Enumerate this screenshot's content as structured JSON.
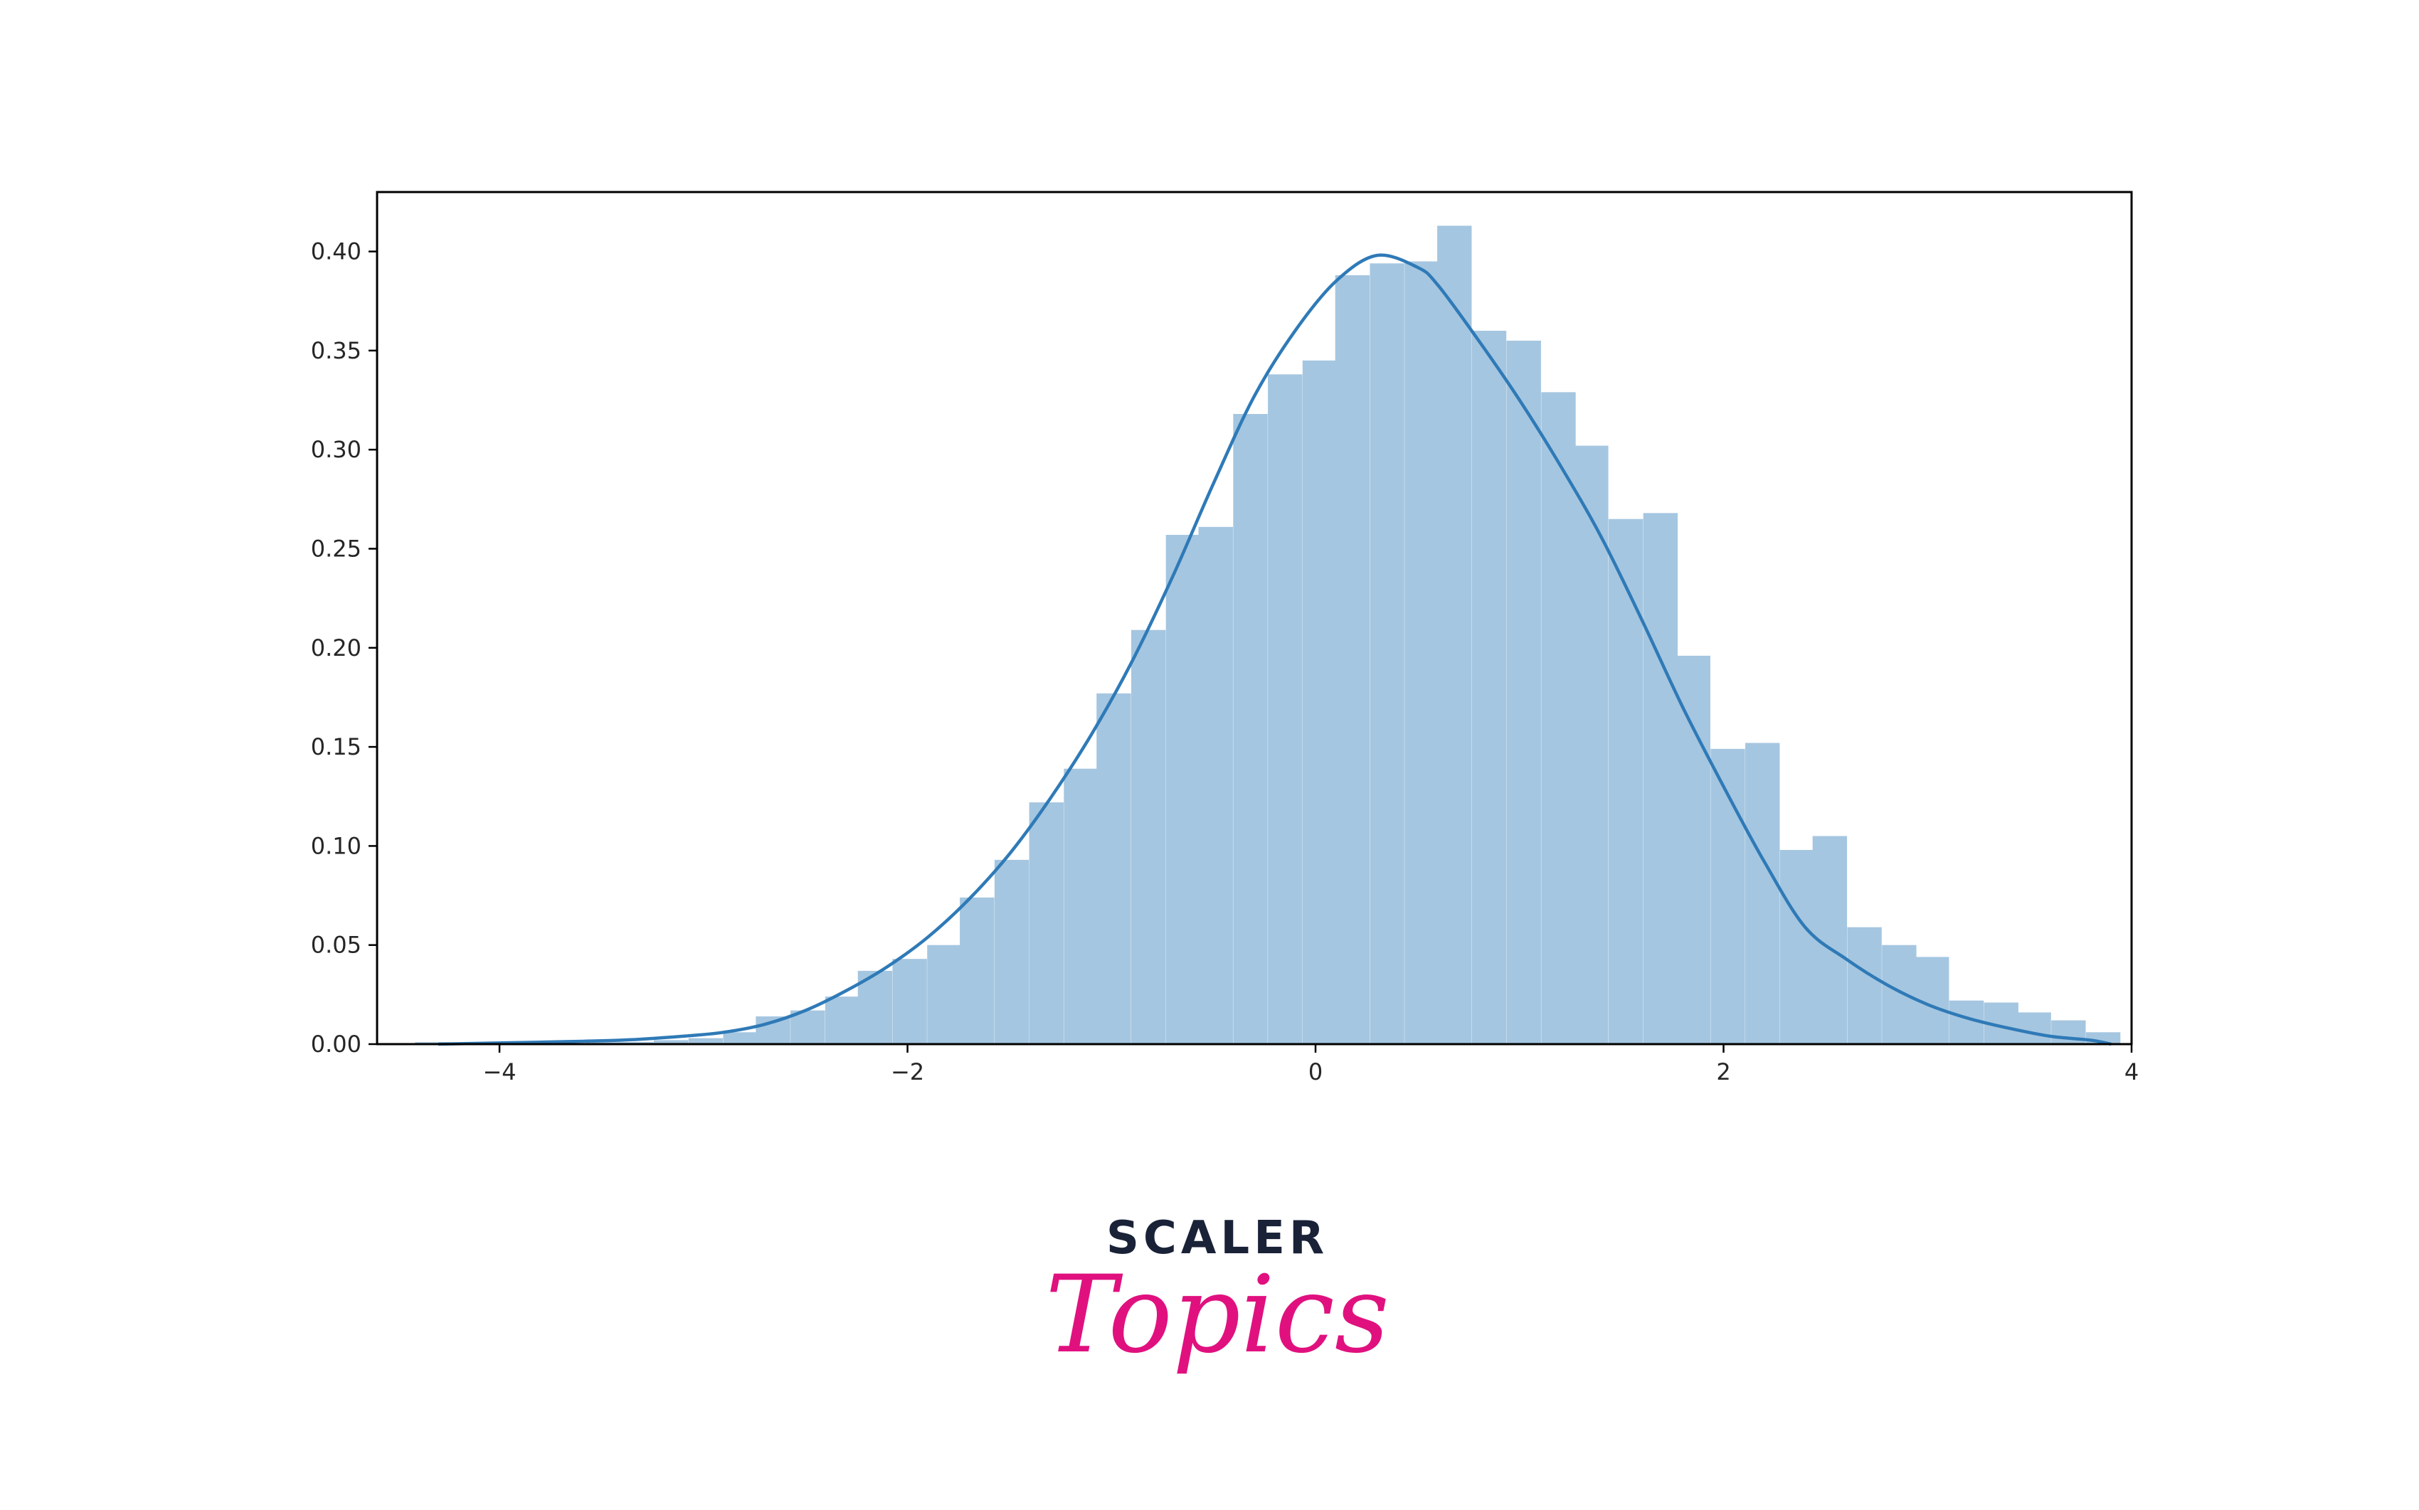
{
  "chart_data": {
    "type": "bar",
    "kde": true,
    "bin_width": 0.167,
    "xlim": [
      -4.6,
      4.0
    ],
    "ylim": [
      0.0,
      0.43
    ],
    "xticks": [
      -4,
      -2,
      0,
      2,
      4
    ],
    "xtick_labels": [
      "−4",
      "−2",
      "0",
      "2",
      "4"
    ],
    "yticks": [
      0.0,
      0.05,
      0.1,
      0.15,
      0.2,
      0.25,
      0.3,
      0.35,
      0.4
    ],
    "ytick_labels": [
      "0.00",
      "0.05",
      "0.10",
      "0.15",
      "0.20",
      "0.25",
      "0.30",
      "0.35",
      "0.40"
    ],
    "bins": [
      {
        "x": -4.33,
        "value": 0.001
      },
      {
        "x": -4.16,
        "value": 0.0
      },
      {
        "x": -3.99,
        "value": 0.0
      },
      {
        "x": -3.83,
        "value": 0.001
      },
      {
        "x": -3.66,
        "value": 0.0
      },
      {
        "x": -3.49,
        "value": 0.001
      },
      {
        "x": -3.33,
        "value": 0.001
      },
      {
        "x": -3.16,
        "value": 0.002
      },
      {
        "x": -2.99,
        "value": 0.003
      },
      {
        "x": -2.82,
        "value": 0.006
      },
      {
        "x": -2.66,
        "value": 0.014
      },
      {
        "x": -2.49,
        "value": 0.017
      },
      {
        "x": -2.32,
        "value": 0.024
      },
      {
        "x": -2.16,
        "value": 0.037
      },
      {
        "x": -1.99,
        "value": 0.043
      },
      {
        "x": -1.82,
        "value": 0.05
      },
      {
        "x": -1.66,
        "value": 0.074
      },
      {
        "x": -1.49,
        "value": 0.093
      },
      {
        "x": -1.32,
        "value": 0.122
      },
      {
        "x": -1.15,
        "value": 0.139
      },
      {
        "x": -0.99,
        "value": 0.177
      },
      {
        "x": -0.82,
        "value": 0.209
      },
      {
        "x": -0.65,
        "value": 0.257
      },
      {
        "x": -0.49,
        "value": 0.261
      },
      {
        "x": -0.32,
        "value": 0.318
      },
      {
        "x": -0.15,
        "value": 0.338
      },
      {
        "x": 0.02,
        "value": 0.345
      },
      {
        "x": 0.18,
        "value": 0.388
      },
      {
        "x": 0.35,
        "value": 0.394
      },
      {
        "x": 0.52,
        "value": 0.395
      },
      {
        "x": 0.68,
        "value": 0.413
      },
      {
        "x": 0.85,
        "value": 0.36
      },
      {
        "x": 1.02,
        "value": 0.355
      },
      {
        "x": 1.19,
        "value": 0.329
      },
      {
        "x": 1.35,
        "value": 0.302
      },
      {
        "x": 1.52,
        "value": 0.265
      },
      {
        "x": 1.69,
        "value": 0.268
      },
      {
        "x": 1.85,
        "value": 0.196
      },
      {
        "x": 2.02,
        "value": 0.149
      },
      {
        "x": 2.19,
        "value": 0.152
      },
      {
        "x": 2.36,
        "value": 0.098
      },
      {
        "x": 2.52,
        "value": 0.105
      },
      {
        "x": 2.69,
        "value": 0.059
      },
      {
        "x": 2.86,
        "value": 0.05
      },
      {
        "x": 3.02,
        "value": 0.044
      },
      {
        "x": 3.19,
        "value": 0.022
      },
      {
        "x": 3.36,
        "value": 0.021
      },
      {
        "x": 3.52,
        "value": 0.016
      },
      {
        "x": 3.69,
        "value": 0.012
      },
      {
        "x": 3.86,
        "value": 0.006
      }
    ],
    "kde_points": [
      [
        -4.3,
        0.0
      ],
      [
        -3.8,
        0.001
      ],
      [
        -3.4,
        0.002
      ],
      [
        -3.1,
        0.004
      ],
      [
        -2.9,
        0.006
      ],
      [
        -2.7,
        0.01
      ],
      [
        -2.5,
        0.017
      ],
      [
        -2.3,
        0.027
      ],
      [
        -2.1,
        0.039
      ],
      [
        -1.9,
        0.054
      ],
      [
        -1.7,
        0.073
      ],
      [
        -1.5,
        0.096
      ],
      [
        -1.3,
        0.124
      ],
      [
        -1.1,
        0.156
      ],
      [
        -0.9,
        0.193
      ],
      [
        -0.7,
        0.236
      ],
      [
        -0.5,
        0.283
      ],
      [
        -0.3,
        0.327
      ],
      [
        -0.1,
        0.36
      ],
      [
        0.1,
        0.385
      ],
      [
        0.3,
        0.398
      ],
      [
        0.5,
        0.392
      ],
      [
        0.6,
        0.383
      ],
      [
        0.8,
        0.355
      ],
      [
        1.0,
        0.325
      ],
      [
        1.2,
        0.292
      ],
      [
        1.4,
        0.256
      ],
      [
        1.6,
        0.214
      ],
      [
        1.8,
        0.17
      ],
      [
        2.0,
        0.13
      ],
      [
        2.2,
        0.092
      ],
      [
        2.4,
        0.059
      ],
      [
        2.6,
        0.043
      ],
      [
        2.8,
        0.03
      ],
      [
        3.0,
        0.02
      ],
      [
        3.2,
        0.013
      ],
      [
        3.4,
        0.008
      ],
      [
        3.6,
        0.004
      ],
      [
        3.8,
        0.002
      ],
      [
        3.9,
        0.0
      ]
    ],
    "colors": {
      "bar_fill": "#a5c6e0",
      "kde_line": "#2f7ab7",
      "axis": "#000000"
    },
    "grid": false
  },
  "logo": {
    "top": "SCALER",
    "bottom": "Topics"
  },
  "colors": {
    "logo_top": "#1a2238",
    "logo_bottom": "#e0117f"
  }
}
